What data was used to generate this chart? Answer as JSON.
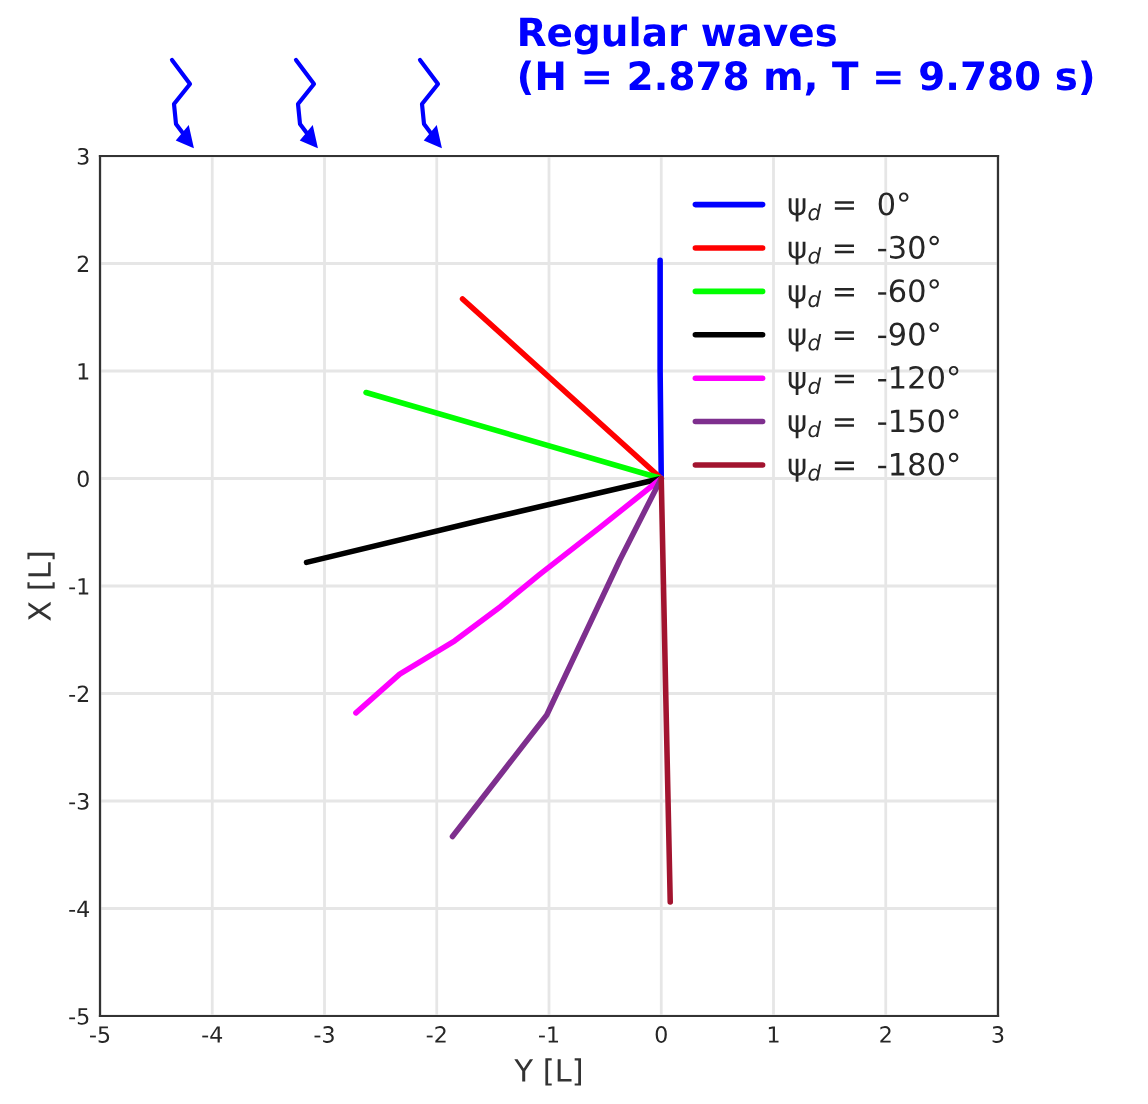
{
  "chart_data": {
    "type": "line",
    "title": "Regular waves\n(H = 2.878 m, T = 9.780 s)",
    "xlabel": "Y [L]",
    "ylabel": "X [L]",
    "xlim": [
      -5,
      3
    ],
    "ylim": [
      -5,
      3
    ],
    "xticks": [
      -5,
      -4,
      -3,
      -2,
      -1,
      0,
      1,
      2,
      3
    ],
    "yticks": [
      -5,
      -4,
      -3,
      -2,
      -1,
      0,
      1,
      2,
      3
    ],
    "grid": true,
    "legend": "top right",
    "line_style": "solid",
    "marker": "none",
    "series": [
      {
        "name": "ψ$_{d}$ =  0°",
        "color": "#0000ff",
        "x": [
          0,
          -0.01,
          -0.01
        ],
        "values": [
          0,
          1.0,
          2.03
        ]
      },
      {
        "name": "ψ$_{d}$ =  -30°",
        "color": "#ff0000",
        "x": [
          0,
          -1.77
        ],
        "values": [
          0,
          1.67
        ]
      },
      {
        "name": "ψ$_{d}$ =  -60°",
        "color": "#00ff00",
        "x": [
          0,
          -2.63
        ],
        "values": [
          0,
          0.8
        ]
      },
      {
        "name": "ψ$_{d}$ =  -90°",
        "color": "#000000",
        "x": [
          0,
          -1.61,
          -3.16
        ],
        "values": [
          0,
          -0.39,
          -0.78
        ]
      },
      {
        "name": "ψ$_{d}$ =  -120°",
        "color": "#ff00ff",
        "x": [
          0,
          -0.54,
          -1.08,
          -1.43,
          -1.84,
          -2.33,
          -2.72
        ],
        "values": [
          0,
          -0.45,
          -0.89,
          -1.19,
          -1.51,
          -1.82,
          -2.18
        ]
      },
      {
        "name": "ψ$_{d}$ =  -150°",
        "color": "#7e2f8e",
        "x": [
          0,
          -0.37,
          -1.02,
          -1.86
        ],
        "values": [
          0,
          -0.76,
          -2.2,
          -3.33
        ]
      },
      {
        "name": "ψ$_{d}$ =  -180°",
        "color": "#a2142f",
        "x": [
          0,
          0.04,
          0.08
        ],
        "values": [
          0,
          -2.0,
          -3.94
        ]
      }
    ]
  }
}
